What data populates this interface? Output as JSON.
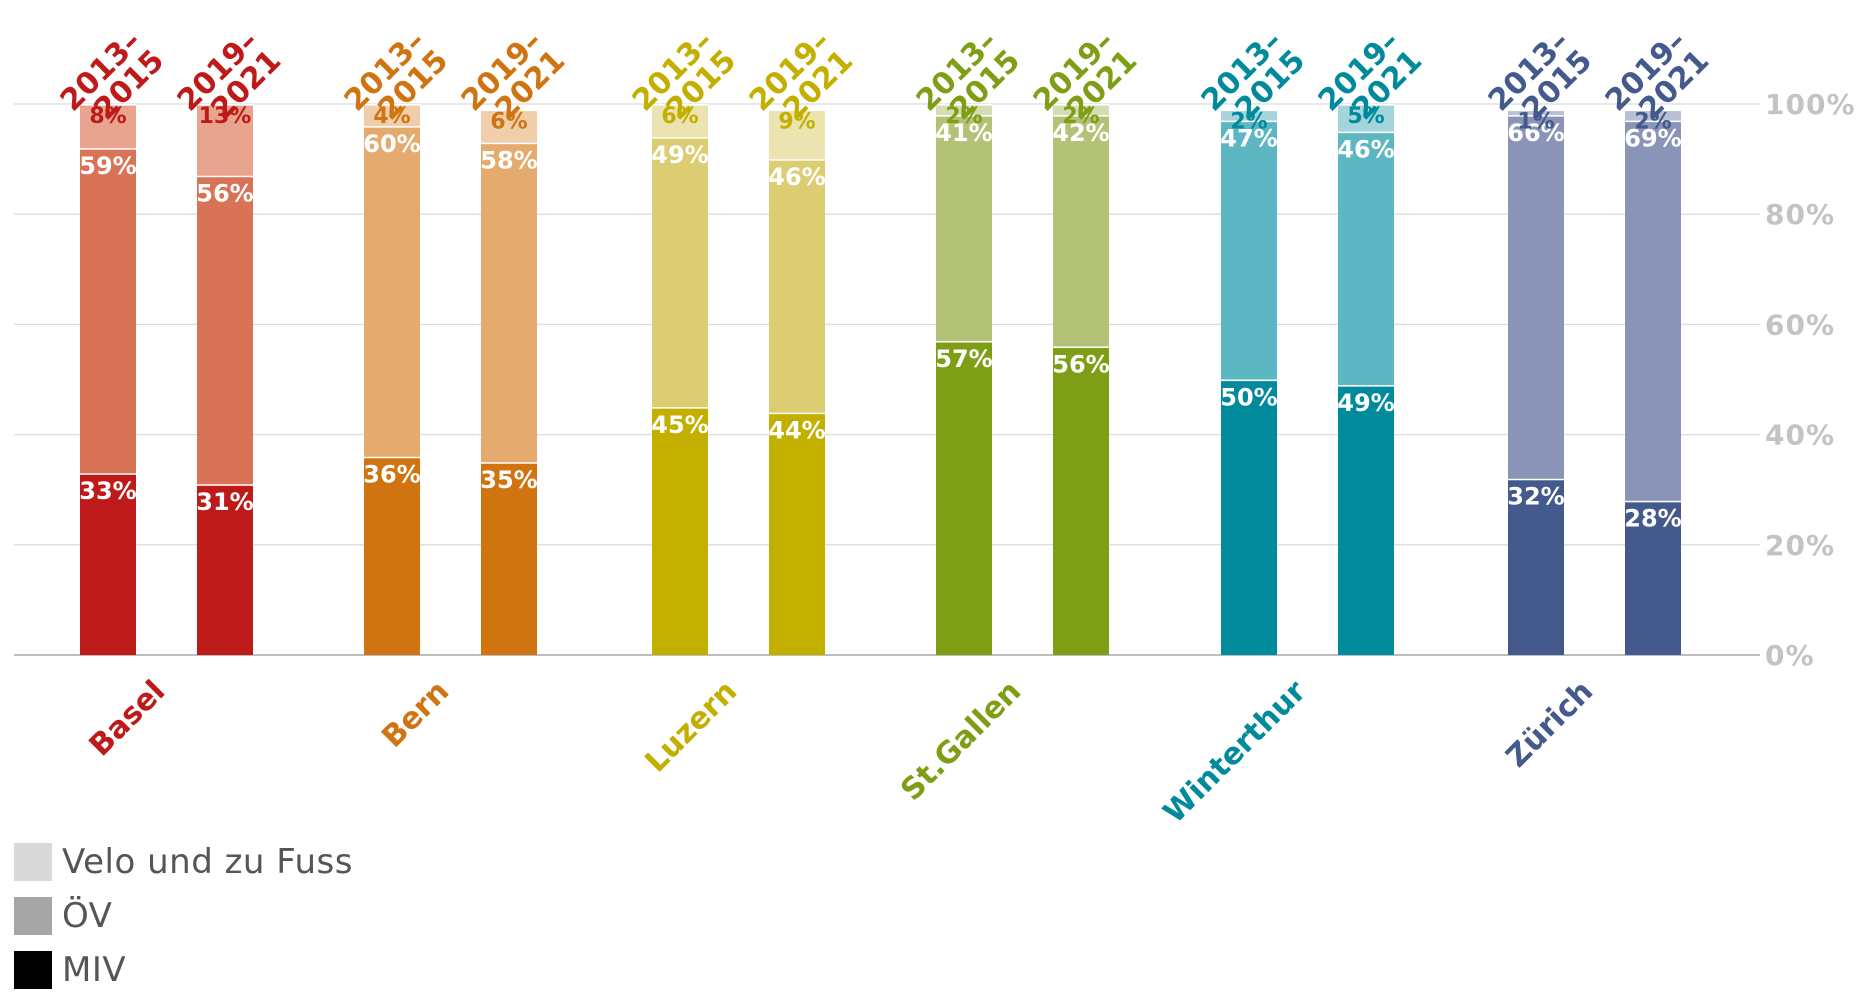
{
  "chart_data": {
    "type": "bar",
    "stacked": true,
    "ylim": [
      0,
      100
    ],
    "y_axis_position": "right",
    "grid": true,
    "yticks": [
      "0%",
      "20%",
      "40%",
      "60%",
      "80%",
      "100%"
    ],
    "period_labels": [
      [
        "2013–",
        "2015"
      ],
      [
        "2019–",
        "2021"
      ]
    ],
    "legend_position": "bottom-left",
    "legend": [
      {
        "key": "velo",
        "label": "Velo und zu Fuss",
        "color": "#d9d9d9"
      },
      {
        "key": "ov",
        "label": "ÖV",
        "color": "#a6a6a6"
      },
      {
        "key": "miv",
        "label": "MIV",
        "color": "#000000"
      }
    ],
    "series_order": [
      "miv",
      "ov",
      "velo"
    ],
    "groups": [
      {
        "city": "Basel",
        "colors": {
          "miv": "#be1a1a",
          "ov": "#d97357",
          "velo": "#e8a48f",
          "text": "#be1a1a"
        },
        "bars": [
          {
            "period": "2013–2015",
            "miv": 33,
            "ov": 59,
            "velo": 8
          },
          {
            "period": "2019–2021",
            "miv": 31,
            "ov": 56,
            "velo": 13
          }
        ]
      },
      {
        "city": "Bern",
        "colors": {
          "miv": "#cf7410",
          "ov": "#e5aa6d",
          "velo": "#f0ceaa",
          "text": "#cf7410"
        },
        "bars": [
          {
            "period": "2013–2015",
            "miv": 36,
            "ov": 60,
            "velo": 4
          },
          {
            "period": "2019–2021",
            "miv": 35,
            "ov": 58,
            "velo": 6
          }
        ]
      },
      {
        "city": "Luzern",
        "colors": {
          "miv": "#c2af00",
          "ov": "#dccc72",
          "velo": "#ebe3b0",
          "text": "#c2af00"
        },
        "bars": [
          {
            "period": "2013–2015",
            "miv": 45,
            "ov": 49,
            "velo": 6
          },
          {
            "period": "2019–2021",
            "miv": 44,
            "ov": 46,
            "velo": 9
          }
        ]
      },
      {
        "city": "St.Gallen",
        "colors": {
          "miv": "#7e9e16",
          "ov": "#b4c278",
          "velo": "#d5ddb1",
          "text": "#7e9e16"
        },
        "bars": [
          {
            "period": "2013–2015",
            "miv": 57,
            "ov": 41,
            "velo": 2
          },
          {
            "period": "2019–2021",
            "miv": 56,
            "ov": 42,
            "velo": 2
          }
        ]
      },
      {
        "city": "Winterthur",
        "colors": {
          "miv": "#008a9c",
          "ov": "#5db7c2",
          "velo": "#a4d4dc",
          "text": "#008a9c"
        },
        "bars": [
          {
            "period": "2013–2015",
            "miv": 50,
            "ov": 47,
            "velo": 2
          },
          {
            "period": "2019–2021",
            "miv": 49,
            "ov": 46,
            "velo": 5
          }
        ]
      },
      {
        "city": "Zürich",
        "colors": {
          "miv": "#445a8c",
          "ov": "#8994b7",
          "velo": "#b9bfd4",
          "text": "#445a8c"
        },
        "bars": [
          {
            "period": "2013–2015",
            "miv": 32,
            "ov": 66,
            "velo": 1
          },
          {
            "period": "2019–2021",
            "miv": 28,
            "ov": 69,
            "velo": 2
          }
        ]
      }
    ]
  }
}
